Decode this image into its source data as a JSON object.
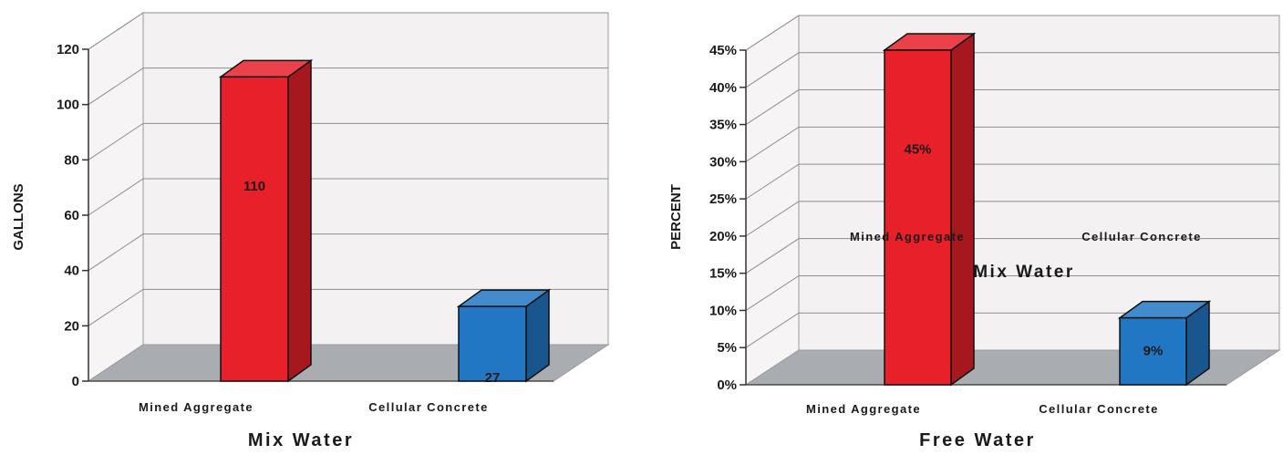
{
  "chart_data": [
    {
      "type": "bar",
      "categories": [
        "Mined Aggregate",
        "Cellular Concrete"
      ],
      "values": [
        110,
        27
      ],
      "value_labels": [
        "110",
        "27"
      ],
      "colors": [
        "#e8202a",
        "#2277c4"
      ],
      "title": "Mix Water",
      "xlabel": "",
      "ylabel": "GALLONS",
      "ylim": [
        0,
        120
      ],
      "yticks": [
        "0",
        "20",
        "40",
        "60",
        "80",
        "100",
        "120"
      ],
      "grid": true,
      "style": "3d"
    },
    {
      "type": "bar",
      "categories": [
        "Mined Aggregate",
        "Cellular Concrete"
      ],
      "values": [
        45,
        9
      ],
      "value_labels": [
        "45%",
        "9%"
      ],
      "colors": [
        "#e8202a",
        "#2277c4"
      ],
      "title": "Free Water",
      "xlabel": "",
      "ylabel": "PERCENT",
      "ylim": [
        0,
        45
      ],
      "yticks": [
        "0%",
        "5%",
        "10%",
        "15%",
        "20%",
        "25%",
        "30%",
        "35%",
        "40%",
        "45%"
      ],
      "grid": true,
      "style": "3d",
      "overlay_labels": {
        "left": "Mined Aggregate",
        "right": "Cellular Concrete",
        "title": "Mix Water"
      }
    }
  ]
}
